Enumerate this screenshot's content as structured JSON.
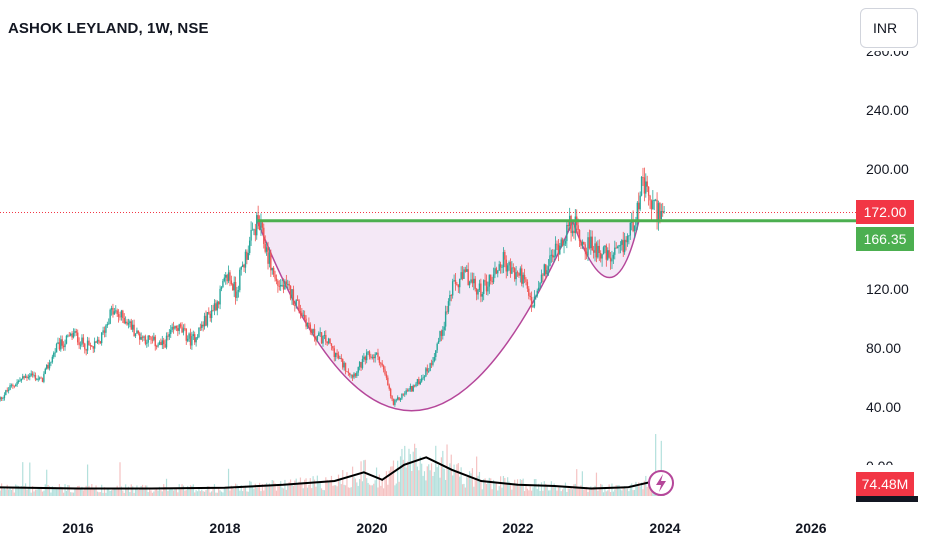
{
  "header": {
    "title": "ASHOK LEYLAND, 1W, NSE"
  },
  "currency_selector": {
    "label": "INR"
  },
  "colors": {
    "up": "#26a69a",
    "down": "#ef5350",
    "resistance": "#4caf50",
    "cup": "#b5479a",
    "cup_fill": "#f3e5f5",
    "price_badge": "#f23645",
    "level_badge": "#4caf50",
    "volume_line": "#000000"
  },
  "price_axis": {
    "ticks": [
      "240.00",
      "200.00",
      "120.00",
      "80.00",
      "40.00",
      "0.00"
    ],
    "clipped_top_tick": "280.00"
  },
  "time_axis": {
    "ticks": [
      "2016",
      "2018",
      "2020",
      "2022",
      "2024",
      "2026"
    ]
  },
  "badges": {
    "last_price": "172.00",
    "resistance_level": "166.35",
    "volume": "74.48M"
  },
  "chart_data": {
    "type": "candlestick",
    "title": "ASHOK LEYLAND, 1W, NSE",
    "xlabel": "",
    "ylabel": "",
    "x_range": [
      2014.9,
      2027.0
    ],
    "ylim": [
      0,
      280
    ],
    "grid": false,
    "resistance_level": 166.35,
    "last_price": 172.0,
    "last_volume": "74.48M",
    "price_path": [
      {
        "x": 2014.9,
        "y": 44
      },
      {
        "x": 2015.1,
        "y": 55
      },
      {
        "x": 2015.35,
        "y": 63
      },
      {
        "x": 2015.5,
        "y": 58
      },
      {
        "x": 2015.7,
        "y": 80
      },
      {
        "x": 2015.95,
        "y": 90
      },
      {
        "x": 2016.05,
        "y": 84
      },
      {
        "x": 2016.2,
        "y": 80
      },
      {
        "x": 2016.3,
        "y": 85
      },
      {
        "x": 2016.45,
        "y": 105
      },
      {
        "x": 2016.65,
        "y": 100
      },
      {
        "x": 2016.8,
        "y": 90
      },
      {
        "x": 2017.0,
        "y": 85
      },
      {
        "x": 2017.15,
        "y": 82
      },
      {
        "x": 2017.35,
        "y": 95
      },
      {
        "x": 2017.55,
        "y": 85
      },
      {
        "x": 2017.75,
        "y": 100
      },
      {
        "x": 2017.9,
        "y": 112
      },
      {
        "x": 2018.05,
        "y": 130
      },
      {
        "x": 2018.15,
        "y": 118
      },
      {
        "x": 2018.3,
        "y": 145
      },
      {
        "x": 2018.45,
        "y": 166
      },
      {
        "x": 2018.55,
        "y": 150
      },
      {
        "x": 2018.7,
        "y": 125
      },
      {
        "x": 2018.9,
        "y": 118
      },
      {
        "x": 2019.05,
        "y": 105
      },
      {
        "x": 2019.2,
        "y": 90
      },
      {
        "x": 2019.4,
        "y": 85
      },
      {
        "x": 2019.6,
        "y": 70
      },
      {
        "x": 2019.75,
        "y": 62
      },
      {
        "x": 2019.95,
        "y": 75
      },
      {
        "x": 2020.1,
        "y": 75
      },
      {
        "x": 2020.2,
        "y": 60
      },
      {
        "x": 2020.3,
        "y": 42
      },
      {
        "x": 2020.45,
        "y": 50
      },
      {
        "x": 2020.6,
        "y": 55
      },
      {
        "x": 2020.8,
        "y": 68
      },
      {
        "x": 2020.95,
        "y": 90
      },
      {
        "x": 2021.1,
        "y": 120
      },
      {
        "x": 2021.3,
        "y": 130
      },
      {
        "x": 2021.45,
        "y": 118
      },
      {
        "x": 2021.6,
        "y": 125
      },
      {
        "x": 2021.8,
        "y": 140
      },
      {
        "x": 2021.95,
        "y": 130
      },
      {
        "x": 2022.05,
        "y": 130
      },
      {
        "x": 2022.2,
        "y": 108
      },
      {
        "x": 2022.35,
        "y": 130
      },
      {
        "x": 2022.55,
        "y": 150
      },
      {
        "x": 2022.75,
        "y": 166
      },
      {
        "x": 2022.9,
        "y": 150
      },
      {
        "x": 2023.1,
        "y": 148
      },
      {
        "x": 2023.25,
        "y": 140
      },
      {
        "x": 2023.4,
        "y": 145
      },
      {
        "x": 2023.55,
        "y": 162
      },
      {
        "x": 2023.7,
        "y": 190
      },
      {
        "x": 2023.85,
        "y": 175
      },
      {
        "x": 2024.0,
        "y": 172
      }
    ],
    "volume_ma_path": [
      {
        "x": 2014.9,
        "y": 0.35
      },
      {
        "x": 2016.0,
        "y": 0.3
      },
      {
        "x": 2017.0,
        "y": 0.3
      },
      {
        "x": 2018.0,
        "y": 0.33
      },
      {
        "x": 2018.8,
        "y": 0.45
      },
      {
        "x": 2019.5,
        "y": 0.6
      },
      {
        "x": 2019.9,
        "y": 0.95
      },
      {
        "x": 2020.15,
        "y": 0.65
      },
      {
        "x": 2020.45,
        "y": 1.25
      },
      {
        "x": 2020.75,
        "y": 1.55
      },
      {
        "x": 2021.1,
        "y": 1.05
      },
      {
        "x": 2021.5,
        "y": 0.6
      },
      {
        "x": 2022.0,
        "y": 0.45
      },
      {
        "x": 2022.5,
        "y": 0.4
      },
      {
        "x": 2023.0,
        "y": 0.3
      },
      {
        "x": 2023.5,
        "y": 0.35
      },
      {
        "x": 2023.8,
        "y": 0.55
      },
      {
        "x": 2024.0,
        "y": 0.5
      }
    ],
    "cup_pattern": {
      "start": {
        "x": 2018.45,
        "y": 166
      },
      "bottom": {
        "x": 2020.55,
        "y": 38
      },
      "end": {
        "x": 2022.75,
        "y": 166
      }
    },
    "handle_pattern": {
      "start": {
        "x": 2022.75,
        "y": 166
      },
      "bottom": {
        "x": 2023.25,
        "y": 128
      },
      "end": {
        "x": 2023.65,
        "y": 166
      }
    }
  }
}
